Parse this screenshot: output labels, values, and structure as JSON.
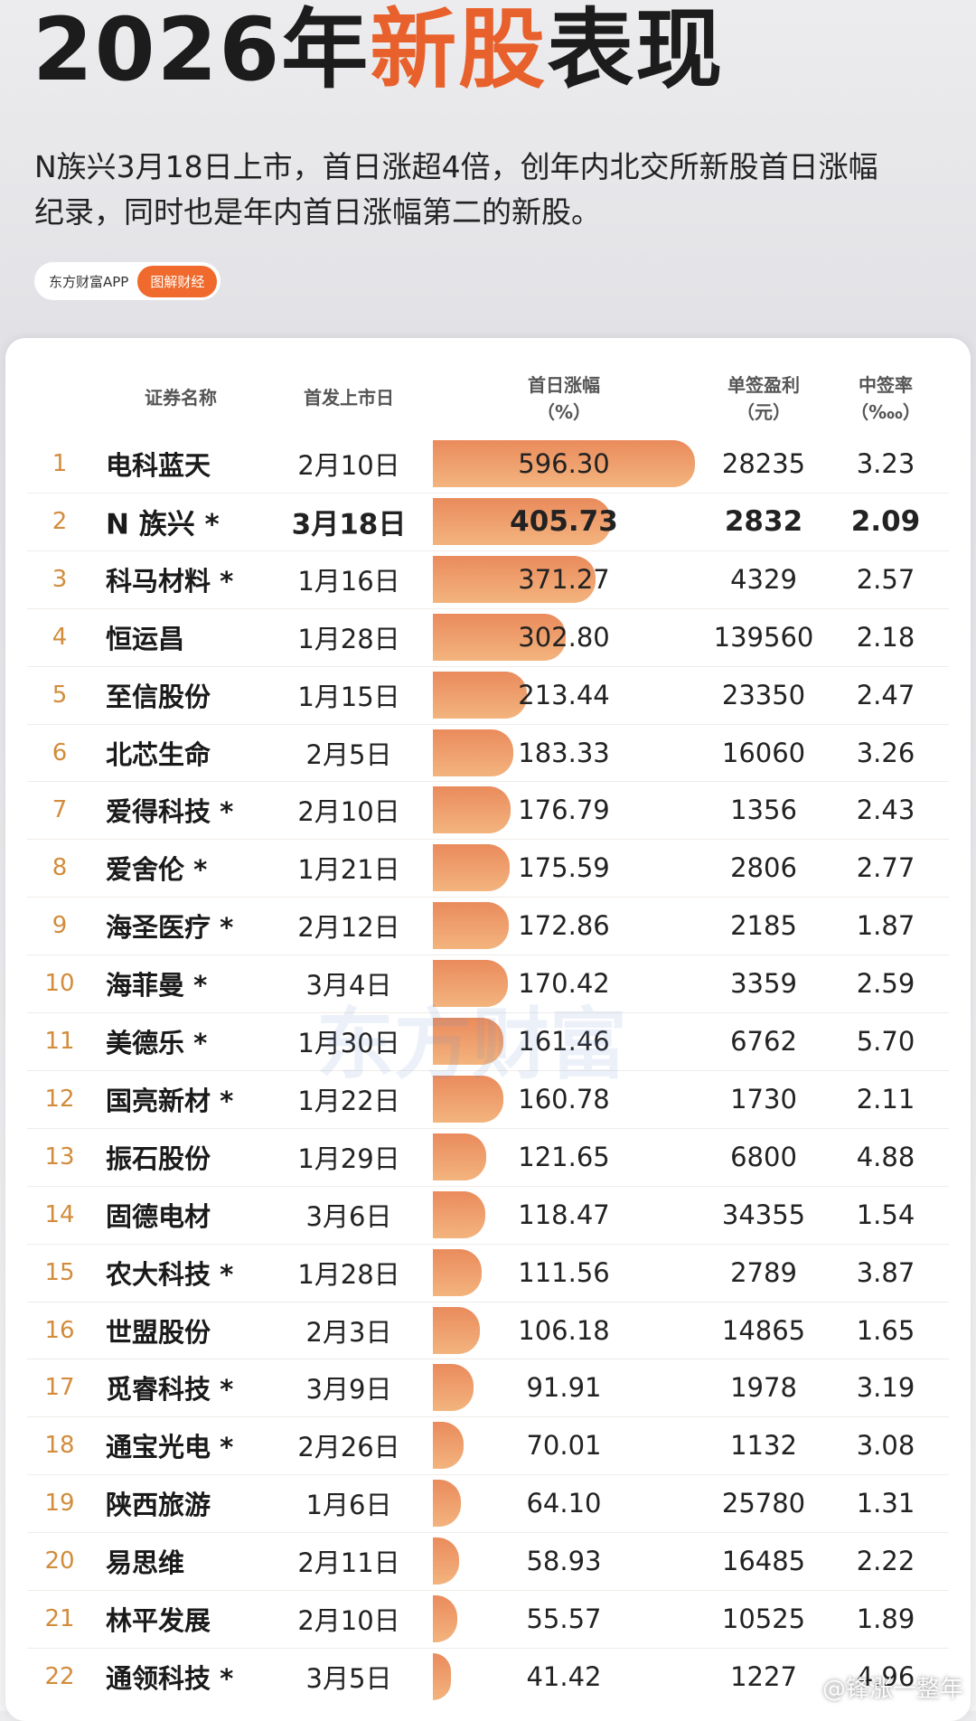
{
  "header": {
    "title_parts": [
      "2026年",
      "新股",
      "表现"
    ],
    "subtitle_lines": [
      "N族兴3月18日上市，首日涨超4倍，创年内北交所新股首日涨幅",
      "纪录，同时也是年内首日涨幅第二的新股。"
    ],
    "source": "东方财富APP",
    "tag": "图解财经"
  },
  "table": {
    "columns": [
      {
        "label": "证券名称"
      },
      {
        "label": "首发上市日"
      },
      {
        "label": "首日涨幅",
        "unit": "（%）"
      },
      {
        "label": "单签盈利",
        "unit": "（元）"
      },
      {
        "label": "中签率",
        "unit": "（‱）"
      }
    ],
    "rows": [
      {
        "rank": 1,
        "name": "电科蓝天",
        "date": "2月10日",
        "gain": "596.30",
        "profit": 28235,
        "rate": "3.23"
      },
      {
        "rank": 2,
        "name": "N 族兴 *",
        "date": "3月18日",
        "gain": "405.73",
        "profit": 2832,
        "rate": "2.09",
        "highlight": true
      },
      {
        "rank": 3,
        "name": "科马材料 *",
        "date": "1月16日",
        "gain": "371.27",
        "profit": 4329,
        "rate": "2.57"
      },
      {
        "rank": 4,
        "name": "恒运昌",
        "date": "1月28日",
        "gain": "302.80",
        "profit": 139560,
        "rate": "2.18"
      },
      {
        "rank": 5,
        "name": "至信股份",
        "date": "1月15日",
        "gain": "213.44",
        "profit": 23350,
        "rate": "2.47"
      },
      {
        "rank": 6,
        "name": "北芯生命",
        "date": "2月5日",
        "gain": "183.33",
        "profit": 16060,
        "rate": "3.26"
      },
      {
        "rank": 7,
        "name": "爱得科技 *",
        "date": "2月10日",
        "gain": "176.79",
        "profit": 1356,
        "rate": "2.43"
      },
      {
        "rank": 8,
        "name": "爱舍伦 *",
        "date": "1月21日",
        "gain": "175.59",
        "profit": 2806,
        "rate": "2.77"
      },
      {
        "rank": 9,
        "name": "海圣医疗 *",
        "date": "2月12日",
        "gain": "172.86",
        "profit": 2185,
        "rate": "1.87"
      },
      {
        "rank": 10,
        "name": "海菲曼 *",
        "date": "3月4日",
        "gain": "170.42",
        "profit": 3359,
        "rate": "2.59"
      },
      {
        "rank": 11,
        "name": "美德乐 *",
        "date": "1月30日",
        "gain": "161.46",
        "profit": 6762,
        "rate": "5.70"
      },
      {
        "rank": 12,
        "name": "国亮新材 *",
        "date": "1月22日",
        "gain": "160.78",
        "profit": 1730,
        "rate": "2.11"
      },
      {
        "rank": 13,
        "name": "振石股份",
        "date": "1月29日",
        "gain": "121.65",
        "profit": 6800,
        "rate": "4.88"
      },
      {
        "rank": 14,
        "name": "固德电材",
        "date": "3月6日",
        "gain": "118.47",
        "profit": 34355,
        "rate": "1.54"
      },
      {
        "rank": 15,
        "name": "农大科技 *",
        "date": "1月28日",
        "gain": "111.56",
        "profit": 2789,
        "rate": "3.87"
      },
      {
        "rank": 16,
        "name": "世盟股份",
        "date": "2月3日",
        "gain": "106.18",
        "profit": 14865,
        "rate": "1.65"
      },
      {
        "rank": 17,
        "name": "觅睿科技 *",
        "date": "3月9日",
        "gain": "91.91",
        "profit": 1978,
        "rate": "3.19"
      },
      {
        "rank": 18,
        "name": "通宝光电 *",
        "date": "2月26日",
        "gain": "70.01",
        "profit": 1132,
        "rate": "3.08"
      },
      {
        "rank": 19,
        "name": "陕西旅游",
        "date": "1月6日",
        "gain": "64.10",
        "profit": 25780,
        "rate": "1.31"
      },
      {
        "rank": 20,
        "name": "易思维",
        "date": "2月11日",
        "gain": "58.93",
        "profit": 16485,
        "rate": "2.22"
      },
      {
        "rank": 21,
        "name": "林平发展",
        "date": "2月10日",
        "gain": "55.57",
        "profit": 10525,
        "rate": "1.89"
      },
      {
        "rank": 22,
        "name": "通领科技 *",
        "date": "3月5日",
        "gain": "41.42",
        "profit": 1227,
        "rate": "4.96"
      }
    ]
  },
  "watermark": "东方财富",
  "credit": "@锋涨一整年"
}
